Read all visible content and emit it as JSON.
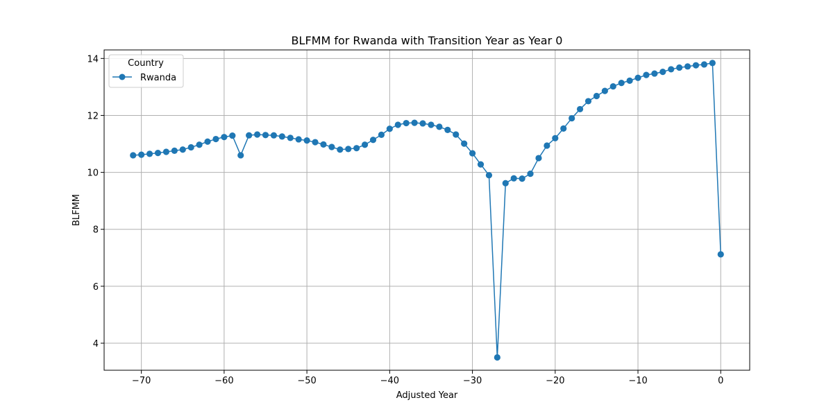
{
  "chart_data": {
    "type": "line",
    "title": "BLFMM for Rwanda with Transition Year as Year 0",
    "xlabel": "Adjusted Year",
    "ylabel": "BLFMM",
    "xlim": [
      -74.5,
      3.5
    ],
    "ylim": [
      3.05,
      14.3
    ],
    "xticks": [
      -70,
      -60,
      -50,
      -40,
      -30,
      -20,
      -10,
      0
    ],
    "xtick_labels": [
      "−70",
      "−60",
      "−50",
      "−40",
      "−30",
      "−20",
      "−10",
      "0"
    ],
    "yticks": [
      4,
      6,
      8,
      10,
      12,
      14
    ],
    "ytick_labels": [
      "4",
      "6",
      "8",
      "10",
      "12",
      "14"
    ],
    "grid": true,
    "legend": {
      "title": "Country",
      "placement": "top-left"
    },
    "series": [
      {
        "name": "Rwanda",
        "color": "#1f77b4",
        "marker": "circle",
        "x": [
          -71,
          -70,
          -69,
          -68,
          -67,
          -66,
          -65,
          -64,
          -63,
          -62,
          -61,
          -60,
          -59,
          -58,
          -57,
          -56,
          -55,
          -54,
          -53,
          -52,
          -51,
          -50,
          -49,
          -48,
          -47,
          -46,
          -45,
          -44,
          -43,
          -42,
          -41,
          -40,
          -39,
          -38,
          -37,
          -36,
          -35,
          -34,
          -33,
          -32,
          -31,
          -30,
          -29,
          -28,
          -27,
          -26,
          -25,
          -24,
          -23,
          -22,
          -21,
          -20,
          -19,
          -18,
          -17,
          -16,
          -15,
          -14,
          -13,
          -12,
          -11,
          -10,
          -9,
          -8,
          -7,
          -6,
          -5,
          -4,
          -3,
          -2,
          -1,
          0
        ],
        "values": [
          10.6,
          10.62,
          10.65,
          10.68,
          10.72,
          10.76,
          10.8,
          10.88,
          10.97,
          11.08,
          11.17,
          11.24,
          11.29,
          10.6,
          11.3,
          11.33,
          11.31,
          11.3,
          11.26,
          11.21,
          11.16,
          11.12,
          11.06,
          10.98,
          10.89,
          10.8,
          10.82,
          10.85,
          10.97,
          11.14,
          11.32,
          11.53,
          11.67,
          11.73,
          11.74,
          11.72,
          11.67,
          11.6,
          11.49,
          11.33,
          11.01,
          10.67,
          10.28,
          9.9,
          3.5,
          9.62,
          9.79,
          9.78,
          9.95,
          10.5,
          10.94,
          11.2,
          11.54,
          11.9,
          12.22,
          12.5,
          12.68,
          12.86,
          13.02,
          13.14,
          13.22,
          13.32,
          13.42,
          13.47,
          13.53,
          13.62,
          13.68,
          13.72,
          13.76,
          13.79,
          13.84,
          7.12
        ]
      }
    ]
  }
}
